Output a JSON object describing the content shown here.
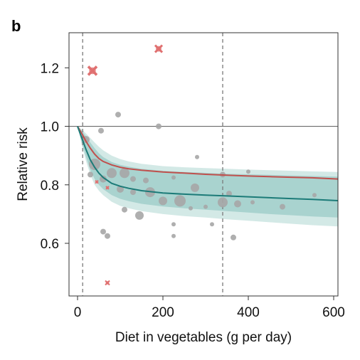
{
  "panel_label": "b",
  "chart_data": {
    "type": "scatter",
    "xlabel": "Diet in vegetables (g per day)",
    "ylabel": "Relative risk",
    "xlim": [
      -20,
      610
    ],
    "ylim": [
      0.42,
      1.32
    ],
    "xticks": [
      0,
      200,
      400,
      600
    ],
    "yticks": [
      0.6,
      0.8,
      1.0,
      1.2
    ],
    "reference_line_y": 1.0,
    "vertical_dashed_x": [
      12,
      340
    ],
    "grid": false,
    "colors": {
      "points": "#a6a6a6",
      "outliers": "#e07070",
      "pooled_curve": "#1c7b78",
      "upper_curve": "#c0504d",
      "inner_band": "#a9d3cf",
      "outer_band": "#d3e9e6",
      "reference_line": "#6b6b6b",
      "dashed_line": "#7a7a7a"
    },
    "curves": {
      "x": [
        0,
        10,
        20,
        30,
        40,
        50,
        60,
        80,
        100,
        120,
        150,
        200,
        250,
        300,
        350,
        400,
        450,
        500,
        550,
        610
      ],
      "pooled": [
        1.0,
        0.96,
        0.92,
        0.885,
        0.86,
        0.84,
        0.825,
        0.805,
        0.795,
        0.788,
        0.78,
        0.772,
        0.768,
        0.765,
        0.762,
        0.759,
        0.756,
        0.753,
        0.75,
        0.746
      ],
      "upper": [
        1.0,
        0.975,
        0.948,
        0.925,
        0.905,
        0.89,
        0.88,
        0.868,
        0.86,
        0.855,
        0.85,
        0.844,
        0.84,
        0.836,
        0.833,
        0.83,
        0.828,
        0.826,
        0.824,
        0.82
      ],
      "inner_band_low": [
        1.0,
        0.945,
        0.895,
        0.85,
        0.82,
        0.8,
        0.785,
        0.765,
        0.752,
        0.744,
        0.735,
        0.726,
        0.72,
        0.715,
        0.71,
        0.705,
        0.7,
        0.696,
        0.692,
        0.688
      ],
      "inner_band_high": [
        1.0,
        0.985,
        0.965,
        0.945,
        0.925,
        0.908,
        0.895,
        0.878,
        0.868,
        0.862,
        0.855,
        0.848,
        0.844,
        0.841,
        0.838,
        0.836,
        0.834,
        0.832,
        0.83,
        0.828
      ],
      "outer_band_low": [
        1.0,
        0.935,
        0.88,
        0.835,
        0.8,
        0.78,
        0.765,
        0.742,
        0.728,
        0.72,
        0.71,
        0.7,
        0.693,
        0.688,
        0.682,
        0.677,
        0.672,
        0.667,
        0.662,
        0.658
      ],
      "outer_band_high": [
        1.0,
        0.99,
        0.975,
        0.96,
        0.945,
        0.93,
        0.918,
        0.9,
        0.888,
        0.88,
        0.872,
        0.864,
        0.86,
        0.857,
        0.855,
        0.852,
        0.85,
        0.848,
        0.846,
        0.844
      ]
    },
    "points": [
      {
        "x": 20,
        "y": 0.955,
        "w": 5
      },
      {
        "x": 40,
        "y": 0.87,
        "w": 8
      },
      {
        "x": 55,
        "y": 0.985,
        "w": 4
      },
      {
        "x": 95,
        "y": 1.04,
        "w": 4
      },
      {
        "x": 190,
        "y": 1.0,
        "w": 4
      },
      {
        "x": 30,
        "y": 0.835,
        "w": 4
      },
      {
        "x": 60,
        "y": 0.82,
        "w": 5
      },
      {
        "x": 80,
        "y": 0.84,
        "w": 7
      },
      {
        "x": 110,
        "y": 0.84,
        "w": 7
      },
      {
        "x": 130,
        "y": 0.82,
        "w": 4
      },
      {
        "x": 160,
        "y": 0.815,
        "w": 4
      },
      {
        "x": 100,
        "y": 0.785,
        "w": 5
      },
      {
        "x": 130,
        "y": 0.775,
        "w": 4
      },
      {
        "x": 170,
        "y": 0.775,
        "w": 7
      },
      {
        "x": 200,
        "y": 0.745,
        "w": 6
      },
      {
        "x": 240,
        "y": 0.745,
        "w": 8
      },
      {
        "x": 225,
        "y": 0.825,
        "w": 3
      },
      {
        "x": 275,
        "y": 0.79,
        "w": 6
      },
      {
        "x": 300,
        "y": 0.725,
        "w": 3
      },
      {
        "x": 265,
        "y": 0.72,
        "w": 3
      },
      {
        "x": 110,
        "y": 0.715,
        "w": 4
      },
      {
        "x": 145,
        "y": 0.695,
        "w": 6
      },
      {
        "x": 280,
        "y": 0.895,
        "w": 3
      },
      {
        "x": 340,
        "y": 0.74,
        "w": 7
      },
      {
        "x": 355,
        "y": 0.77,
        "w": 4
      },
      {
        "x": 375,
        "y": 0.735,
        "w": 5
      },
      {
        "x": 400,
        "y": 0.845,
        "w": 3
      },
      {
        "x": 340,
        "y": 0.835,
        "w": 4
      },
      {
        "x": 410,
        "y": 0.74,
        "w": 3
      },
      {
        "x": 480,
        "y": 0.725,
        "w": 4
      },
      {
        "x": 555,
        "y": 0.765,
        "w": 3
      },
      {
        "x": 225,
        "y": 0.665,
        "w": 3
      },
      {
        "x": 225,
        "y": 0.625,
        "w": 3
      },
      {
        "x": 315,
        "y": 0.665,
        "w": 3
      },
      {
        "x": 365,
        "y": 0.62,
        "w": 4
      },
      {
        "x": 60,
        "y": 0.64,
        "w": 4
      },
      {
        "x": 70,
        "y": 0.625,
        "w": 4
      }
    ],
    "outliers": [
      {
        "x": 35,
        "y": 1.19,
        "w": 6
      },
      {
        "x": 190,
        "y": 1.265,
        "w": 5
      },
      {
        "x": 70,
        "y": 0.465,
        "w": 3
      },
      {
        "x": 45,
        "y": 0.81,
        "w": 2
      },
      {
        "x": 70,
        "y": 0.79,
        "w": 2
      }
    ]
  }
}
